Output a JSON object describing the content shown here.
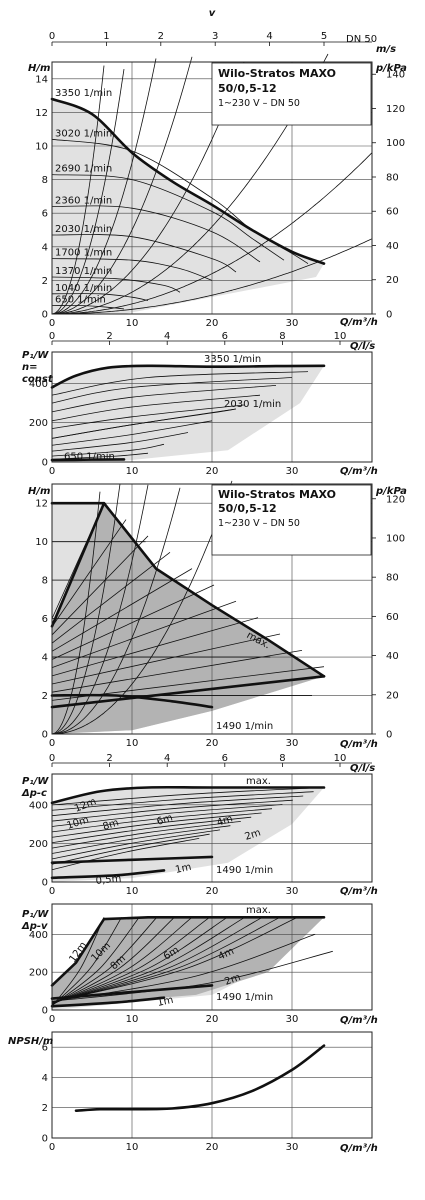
{
  "velocity_axis": {
    "symbol": "v",
    "unit": "m/s",
    "dn": "DN 50",
    "ticks": [
      "0",
      "1",
      "2",
      "3",
      "4",
      "5"
    ]
  },
  "title_box": {
    "line1": "Wilo-Stratos MAXO",
    "line2": "50/0,5-12",
    "line3": "1~230 V – DN 50"
  },
  "chart_data": [
    {
      "id": "head-n-const",
      "type": "line",
      "ylabel": "H/m",
      "y2label": "p/kPa",
      "xlabel": "Q/m³/h",
      "xlim": [
        0,
        40
      ],
      "ylim": [
        0,
        15
      ],
      "xticks": [
        "0",
        "10",
        "20",
        "30"
      ],
      "yticks": [
        "0",
        "2",
        "4",
        "6",
        "8",
        "10",
        "12",
        "14"
      ],
      "y2ticks": [
        "0",
        "20",
        "40",
        "60",
        "80",
        "100",
        "120",
        "140"
      ],
      "series": [
        {
          "name": "3350 1/min",
          "x": [
            0,
            5,
            10,
            15,
            20,
            25,
            30,
            34
          ],
          "y": [
            12.8,
            11.9,
            9.6,
            7.9,
            6.5,
            5.0,
            3.7,
            3.0
          ]
        },
        {
          "name": "3020 1/min",
          "x": [
            0,
            10,
            20,
            25,
            30,
            32
          ],
          "y": [
            10.4,
            9.7,
            6.9,
            5.0,
            3.6,
            3.0
          ]
        },
        {
          "name": "2690 1/min",
          "x": [
            0,
            10,
            20,
            25,
            29
          ],
          "y": [
            8.3,
            8.0,
            6.1,
            4.5,
            3.2
          ]
        },
        {
          "name": "2360 1/min",
          "x": [
            0,
            10,
            20,
            26
          ],
          "y": [
            6.4,
            6.3,
            4.9,
            3.1
          ]
        },
        {
          "name": "2030 1/min",
          "x": [
            0,
            10,
            20,
            23
          ],
          "y": [
            4.7,
            4.6,
            3.3,
            2.5
          ]
        },
        {
          "name": "1700 1/min",
          "x": [
            0,
            10,
            16,
            20
          ],
          "y": [
            3.3,
            3.2,
            2.7,
            2.0
          ]
        },
        {
          "name": "1370 1/min",
          "x": [
            0,
            8,
            14,
            16
          ],
          "y": [
            2.2,
            2.1,
            1.7,
            1.3
          ]
        },
        {
          "name": "1040 1/min",
          "x": [
            0,
            6,
            10,
            12
          ],
          "y": [
            1.2,
            1.2,
            1.0,
            0.8
          ]
        },
        {
          "name": "650 1/min",
          "x": [
            0,
            4,
            7,
            9
          ],
          "y": [
            0.5,
            0.5,
            0.4,
            0.3
          ]
        }
      ]
    },
    {
      "id": "power-n-const",
      "type": "line",
      "ylabel": "P₁/W",
      "ylabel2": "n=",
      "ylabel3": "const",
      "xlabel": "Q/m³/h",
      "x2label": "Q/l/s",
      "xlim": [
        0,
        40
      ],
      "ylim": [
        0,
        560
      ],
      "xticks": [
        "0",
        "10",
        "20",
        "30"
      ],
      "x2ticks": [
        "0",
        "2",
        "4",
        "6",
        "8",
        "10"
      ],
      "yticks": [
        "0",
        "200",
        "400"
      ],
      "series": [
        {
          "name": "3350 1/min",
          "x": [
            0,
            3,
            7,
            12,
            20,
            28,
            34
          ],
          "y": [
            380,
            440,
            480,
            490,
            485,
            488,
            490
          ]
        },
        {
          "name": "2030 1/min",
          "x": [
            0,
            10,
            20,
            23
          ],
          "y": [
            120,
            190,
            250,
            270
          ]
        },
        {
          "name": "650 1/min",
          "x": [
            0,
            5,
            9
          ],
          "y": [
            10,
            12,
            13
          ]
        }
      ]
    },
    {
      "id": "head-dp-c",
      "type": "area",
      "ylabel": "H/m",
      "y2label": "p/kPa",
      "xlabel": "Q/m³/h",
      "xlim": [
        0,
        40
      ],
      "ylim": [
        0,
        13
      ],
      "xticks": [
        "0",
        "10",
        "20",
        "30"
      ],
      "yticks": [
        "0",
        "2",
        "4",
        "6",
        "8",
        "10",
        "12"
      ],
      "y2ticks": [
        "0",
        "20",
        "40",
        "60",
        "80",
        "100",
        "120"
      ],
      "annotations": [
        "max.",
        "1490 1/min"
      ],
      "series": [
        {
          "name": "max.",
          "x": [
            0,
            6.5,
            13,
            20,
            27,
            34
          ],
          "y": [
            12,
            12,
            8.6,
            6.7,
            4.9,
            3.0
          ]
        },
        {
          "name": "1490 1/min",
          "x": [
            0,
            8,
            15,
            20
          ],
          "y": [
            2.0,
            2.0,
            1.7,
            1.4
          ]
        }
      ]
    },
    {
      "id": "power-dp-c",
      "type": "line",
      "ylabel": "P₁/W",
      "ylabel2": "Δp-c",
      "xlabel": "Q/m³/h",
      "x2label": "Q/l/s",
      "xlim": [
        0,
        40
      ],
      "ylim": [
        0,
        560
      ],
      "xticks": [
        "0",
        "10",
        "20",
        "30"
      ],
      "x2ticks": [
        "0",
        "2",
        "4",
        "6",
        "8",
        "10"
      ],
      "yticks": [
        "0",
        "200",
        "400"
      ],
      "annotations": [
        "max.",
        "12m",
        "10m",
        "8m",
        "6m",
        "4m",
        "2m",
        "1m",
        "0,5m",
        "1490 1/min"
      ]
    },
    {
      "id": "power-dp-v",
      "type": "line",
      "ylabel": "P₁/W",
      "ylabel2": "Δp-v",
      "xlabel": "Q/m³/h",
      "xlim": [
        0,
        40
      ],
      "ylim": [
        0,
        560
      ],
      "xticks": [
        "0",
        "10",
        "20",
        "30"
      ],
      "yticks": [
        "0",
        "200",
        "400"
      ],
      "annotations": [
        "max.",
        "12m",
        "10m",
        "8m",
        "6m",
        "4m",
        "2m",
        "1m",
        "1490 1/min"
      ]
    },
    {
      "id": "npsh",
      "type": "line",
      "ylabel": "NPSH/m",
      "xlabel": "Q/m³/h",
      "xlim": [
        0,
        40
      ],
      "ylim": [
        0,
        7
      ],
      "xticks": [
        "0",
        "10",
        "20",
        "30"
      ],
      "yticks": [
        "0",
        "2",
        "4",
        "6"
      ],
      "series": [
        {
          "name": "NPSH",
          "x": [
            3,
            6,
            10,
            15,
            20,
            25,
            30,
            34
          ],
          "y": [
            1.8,
            1.9,
            1.9,
            1.95,
            2.3,
            3.1,
            4.5,
            6.1
          ]
        }
      ]
    }
  ]
}
